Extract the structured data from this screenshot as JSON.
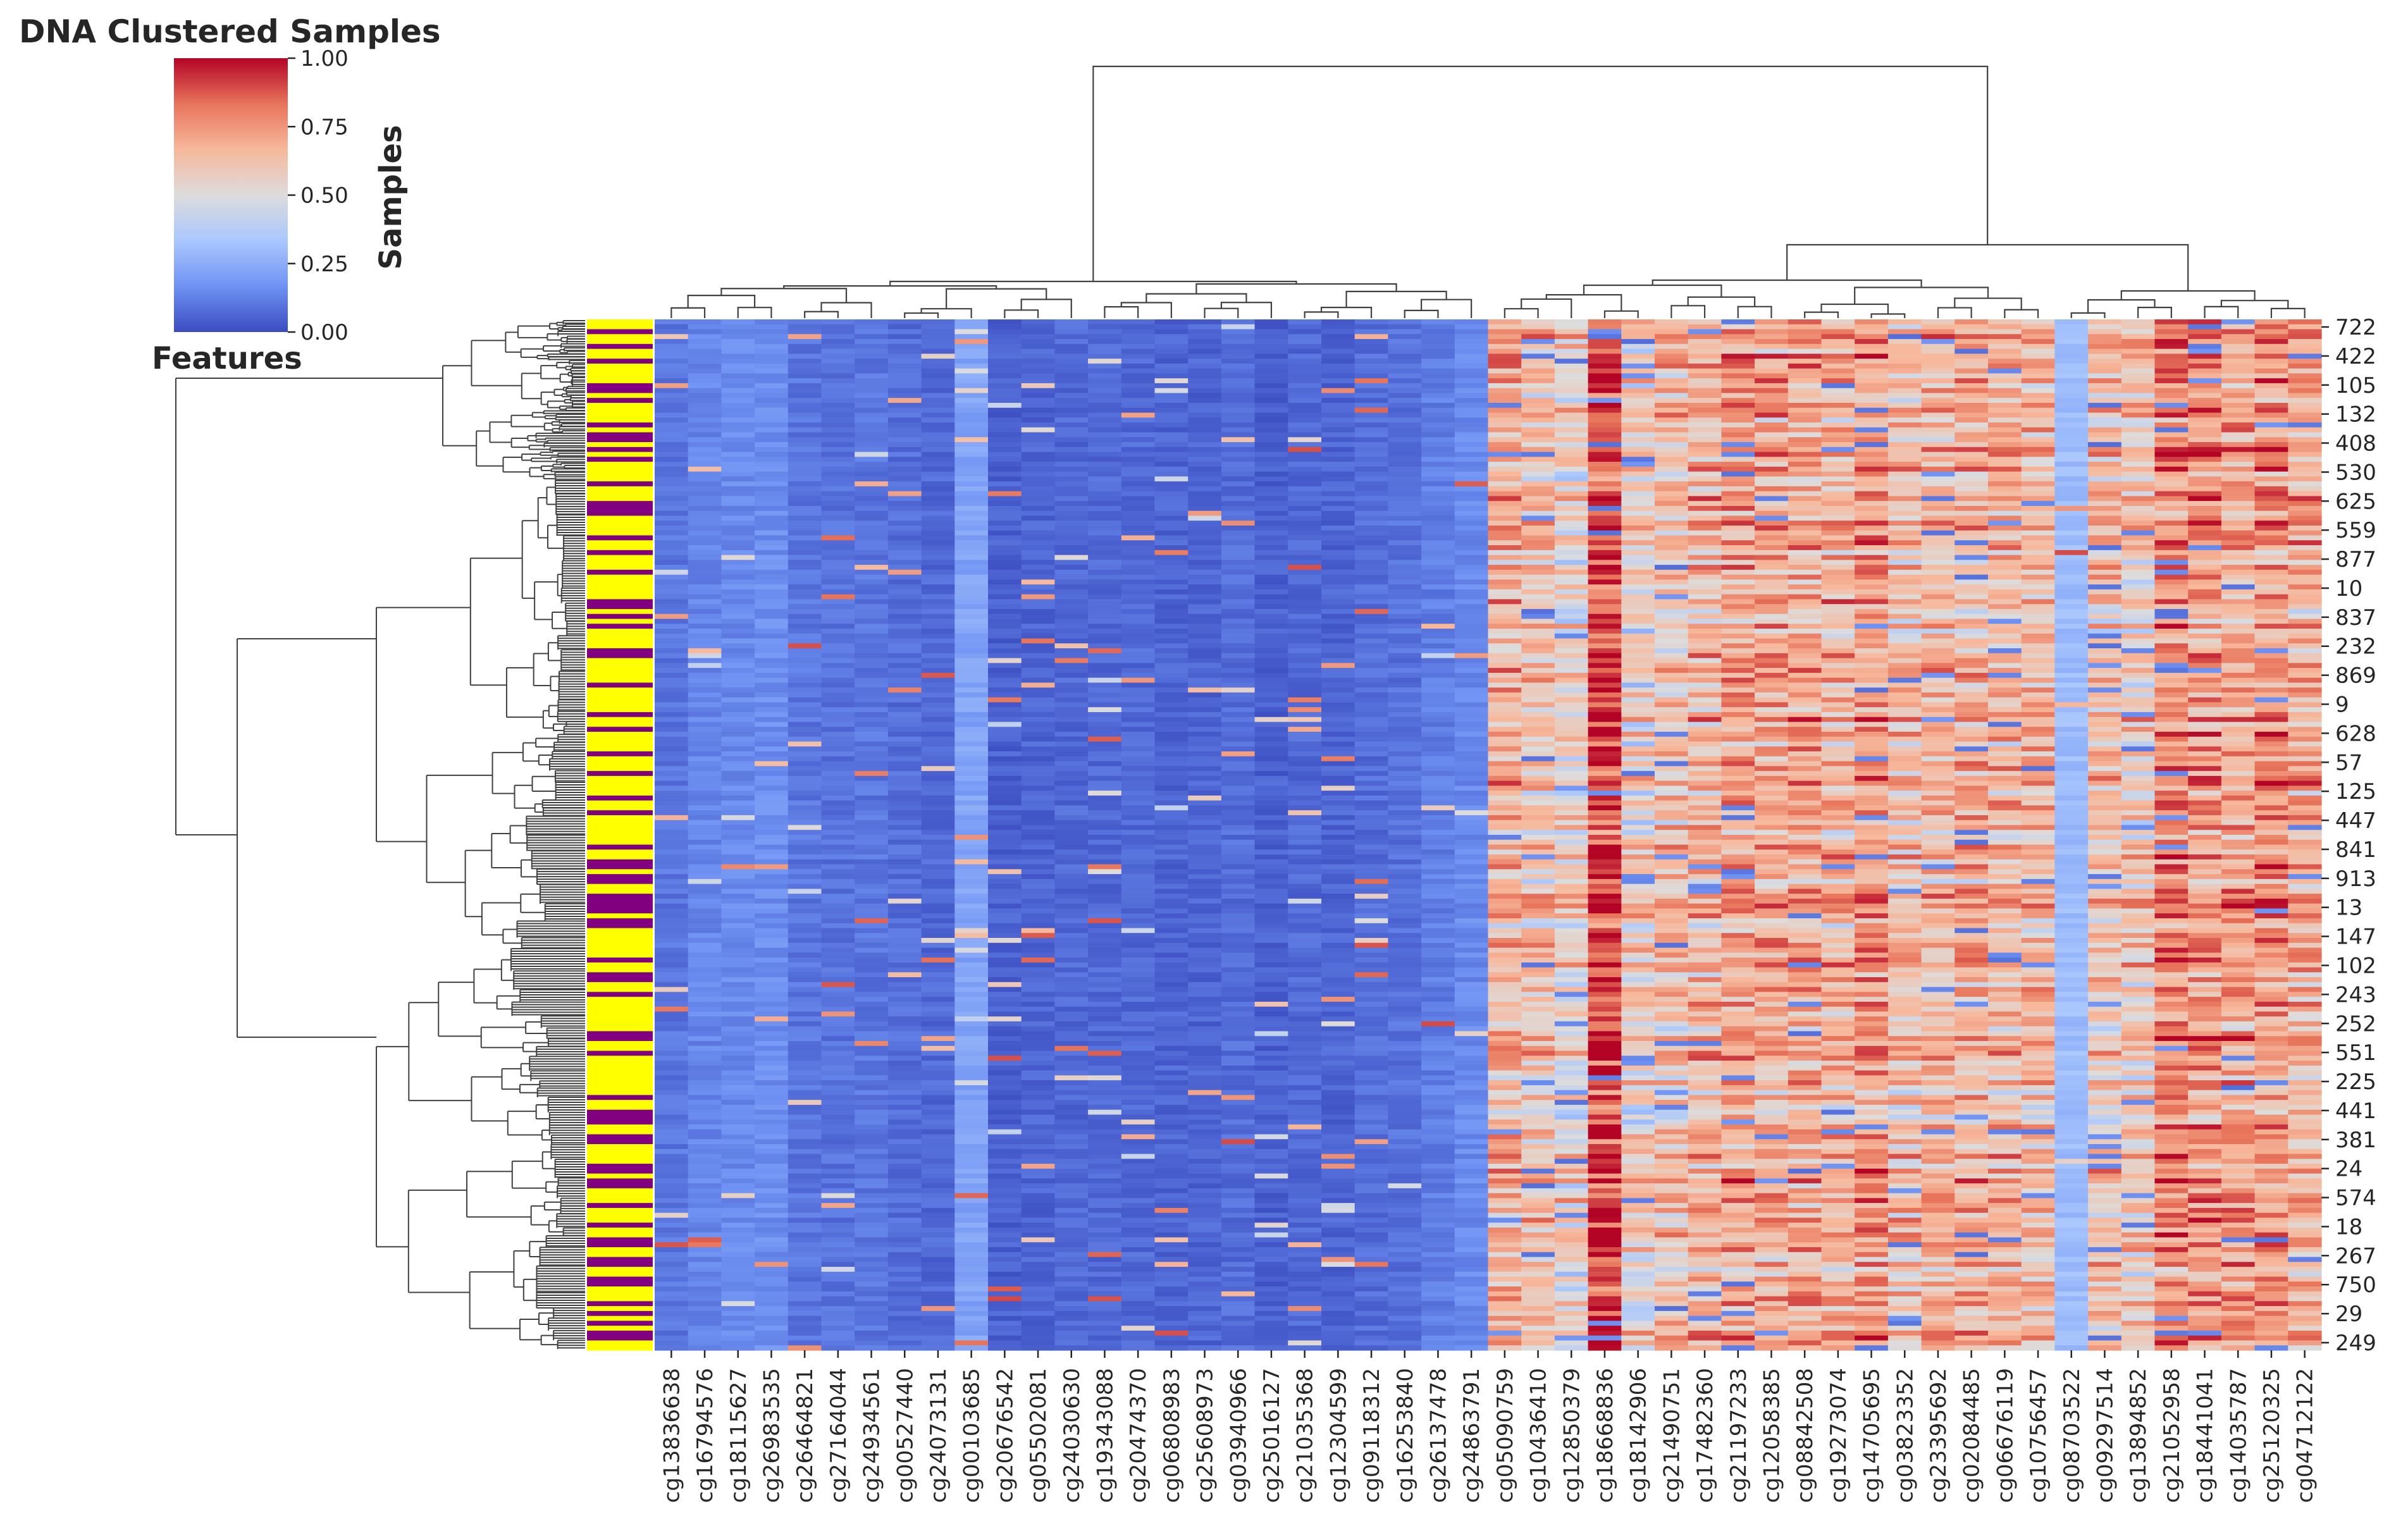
{
  "chart_data": {
    "type": "heatmap",
    "title": "DNA Clustered Samples",
    "row_annotation_label": "Features",
    "colorbar": {
      "label": "Samples",
      "vmin": 0.0,
      "vmax": 1.0,
      "ticks": [
        "0.00",
        "0.25",
        "0.50",
        "0.75",
        "1.00"
      ],
      "colormap": "coolwarm",
      "colors": [
        "#3b4cc0",
        "#6f92f3",
        "#aac7fd",
        "#dddcdc",
        "#f7b89c",
        "#e7745b",
        "#b40426"
      ]
    },
    "annotation_colors": {
      "group_a": "#ffff00",
      "group_b": "#800080"
    },
    "row_labels": [
      "722",
      "422",
      "105",
      "132",
      "408",
      "530",
      "625",
      "559",
      "877",
      "10",
      "837",
      "232",
      "869",
      "9",
      "628",
      "57",
      "125",
      "447",
      "841",
      "913",
      "13",
      "147",
      "102",
      "243",
      "252",
      "551",
      "225",
      "441",
      "381",
      "24",
      "574",
      "18",
      "267",
      "750",
      "29",
      "249"
    ],
    "column_labels": [
      "cg13836638",
      "cg16794576",
      "cg18115627",
      "cg26983535",
      "cg26464821",
      "cg27164044",
      "cg24934561",
      "cg00527440",
      "cg24073131",
      "cg00103685",
      "cg20676542",
      "cg05502081",
      "cg24030630",
      "cg19343088",
      "cg20474370",
      "cg06808983",
      "cg25608973",
      "cg03940966",
      "cg25016127",
      "cg21035368",
      "cg12304599",
      "cg09118312",
      "cg16253840",
      "cg26137478",
      "cg24863791",
      "cg05090759",
      "cg10436410",
      "cg12850379",
      "cg18668836",
      "cg18142906",
      "cg21490751",
      "cg17482360",
      "cg21197233",
      "cg12058385",
      "cg08842508",
      "cg19273074",
      "cg14705695",
      "cg03823352",
      "cg23395692",
      "cg02084485",
      "cg06676119",
      "cg10756457",
      "cg08703522",
      "cg09297514",
      "cg13894852",
      "cg21052958",
      "cg18441041",
      "cg14035787",
      "cg25120325",
      "cg04712122"
    ],
    "column_mean_level": [
      0.1,
      0.14,
      0.15,
      0.16,
      0.1,
      0.09,
      0.1,
      0.08,
      0.07,
      0.22,
      0.05,
      0.06,
      0.07,
      0.07,
      0.07,
      0.06,
      0.06,
      0.08,
      0.05,
      0.07,
      0.06,
      0.08,
      0.09,
      0.12,
      0.15,
      0.68,
      0.62,
      0.55,
      0.9,
      0.56,
      0.62,
      0.66,
      0.72,
      0.7,
      0.7,
      0.66,
      0.74,
      0.64,
      0.66,
      0.68,
      0.66,
      0.64,
      0.3,
      0.62,
      0.6,
      0.78,
      0.74,
      0.72,
      0.76,
      0.68
    ],
    "column_dendrogram": "clusters: cg13836638–cg24863791 (low methylation) vs cg05090759–cg04712122 (high methylation)",
    "row_dendrogram": "hierarchical clustering of 913 samples"
  }
}
